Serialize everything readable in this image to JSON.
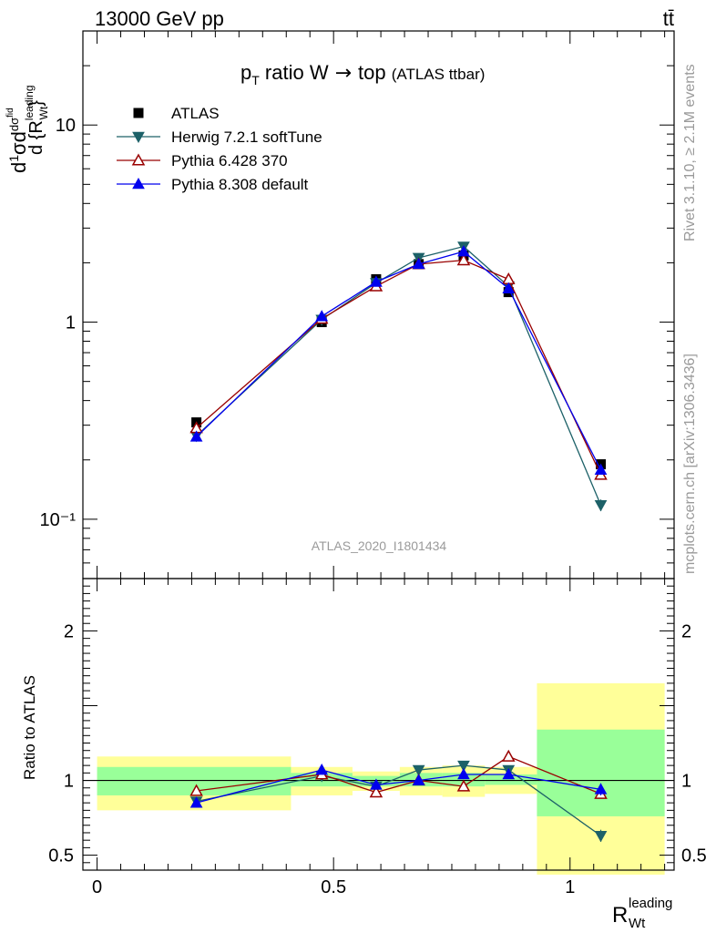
{
  "header": {
    "left": "13000 GeV pp",
    "right": "tt̄"
  },
  "side_labels": {
    "rivet": "Rivet 3.1.10, ≥ 2.1M events",
    "mcplots": "mcplots.cern.ch [arXiv:1306.3436]"
  },
  "analysis_label": "ATLAS_2020_I1801434",
  "chart_data": [
    {
      "type": "line",
      "panel": "main",
      "title": "p_T ratio W → top (ATLAS ttbar)",
      "ylabel": "d(1/σ)dσ^fid / d{R_Wt^leading}",
      "yscale": "log",
      "ylim": [
        0.05,
        30
      ],
      "xlim": [
        -0.03,
        1.22
      ],
      "yticks": [
        {
          "value": 0.1,
          "label": "10⁻¹"
        },
        {
          "value": 1,
          "label": "1"
        },
        {
          "value": 10,
          "label": "10"
        }
      ],
      "legend_position": "top-left",
      "x": [
        0.21,
        0.475,
        0.59,
        0.68,
        0.775,
        0.87,
        1.065
      ],
      "series": [
        {
          "name": "ATLAS",
          "color": "#000000",
          "marker": "square",
          "values": [
            0.31,
            1.0,
            1.65,
            1.97,
            2.18,
            1.42,
            0.19
          ]
        },
        {
          "name": "Herwig 7.2.1 softTune",
          "color": "#1d6168",
          "marker": "triangle-down",
          "values": [
            0.265,
            1.03,
            1.58,
            2.12,
            2.42,
            1.52,
            0.118
          ],
          "errors": [
            0.01,
            0.02,
            0.03,
            0.04,
            0.05,
            0.04,
            0.008
          ]
        },
        {
          "name": "Pythia 6.428 370",
          "color": "#990000",
          "marker": "triangle-up-open",
          "values": [
            0.29,
            1.04,
            1.52,
            1.97,
            2.06,
            1.65,
            0.168
          ],
          "errors": [
            0.01,
            0.02,
            0.03,
            0.04,
            0.04,
            0.04,
            0.008
          ]
        },
        {
          "name": "Pythia 8.308 default",
          "color": "#0000ee",
          "marker": "triangle-up",
          "values": [
            0.262,
            1.07,
            1.6,
            1.97,
            2.28,
            1.48,
            0.178
          ],
          "errors": [
            0.01,
            0.02,
            0.03,
            0.04,
            0.05,
            0.04,
            0.008
          ]
        }
      ]
    },
    {
      "type": "line",
      "panel": "ratio",
      "xlabel": "R_Wt^leading",
      "ylabel": "Ratio to ATLAS",
      "ylim": [
        0.4,
        2.35
      ],
      "xlim": [
        -0.03,
        1.22
      ],
      "xticks": [
        {
          "value": 0,
          "label": "0"
        },
        {
          "value": 0.5,
          "label": "0.5"
        },
        {
          "value": 1,
          "label": "1"
        }
      ],
      "yticks": [
        {
          "value": 0.5,
          "label": "0.5"
        },
        {
          "value": 1,
          "label": "1"
        },
        {
          "value": 2,
          "label": "2"
        }
      ],
      "uncertainty_bands": [
        {
          "x0": 0.0,
          "x1": 0.41,
          "stat_lo": 0.9,
          "stat_hi": 1.09,
          "tot_lo": 0.8,
          "tot_hi": 1.16
        },
        {
          "x0": 0.41,
          "x1": 0.54,
          "stat_lo": 0.96,
          "stat_hi": 1.05,
          "tot_lo": 0.9,
          "tot_hi": 1.09
        },
        {
          "x0": 0.54,
          "x1": 0.64,
          "stat_lo": 0.96,
          "stat_hi": 1.03,
          "tot_lo": 0.93,
          "tot_hi": 1.06
        },
        {
          "x0": 0.64,
          "x1": 0.73,
          "stat_lo": 0.96,
          "stat_hi": 1.05,
          "tot_lo": 0.9,
          "tot_hi": 1.09
        },
        {
          "x0": 0.73,
          "x1": 0.82,
          "stat_lo": 0.96,
          "stat_hi": 1.05,
          "tot_lo": 0.89,
          "tot_hi": 1.1
        },
        {
          "x0": 0.82,
          "x1": 0.93,
          "stat_lo": 0.97,
          "stat_hi": 1.04,
          "tot_lo": 0.91,
          "tot_hi": 1.09
        },
        {
          "x0": 0.93,
          "x1": 1.2,
          "stat_lo": 0.76,
          "stat_hi": 1.34,
          "tot_lo": 0.37,
          "tot_hi": 1.65
        }
      ],
      "band_colors": {
        "stat": "#99ff99",
        "total": "#ffff99"
      },
      "x": [
        0.21,
        0.475,
        0.59,
        0.68,
        0.775,
        0.87,
        1.065
      ],
      "series": [
        {
          "name": "Herwig 7.2.1 softTune",
          "color": "#1d6168",
          "marker": "triangle-down",
          "values": [
            0.86,
            1.03,
            0.96,
            1.07,
            1.1,
            1.07,
            0.63
          ],
          "errors": [
            0.03,
            0.03,
            0.02,
            0.02,
            0.02,
            0.02,
            0.04
          ]
        },
        {
          "name": "Pythia 6.428 370",
          "color": "#990000",
          "marker": "triangle-up-open",
          "values": [
            0.93,
            1.04,
            0.92,
            1.0,
            0.96,
            1.16,
            0.91
          ],
          "errors": [
            0.02,
            0.02,
            0.02,
            0.02,
            0.02,
            0.02,
            0.03
          ]
        },
        {
          "name": "Pythia 8.308 default",
          "color": "#0000ee",
          "marker": "triangle-up",
          "values": [
            0.85,
            1.07,
            0.97,
            1.0,
            1.04,
            1.04,
            0.94
          ],
          "errors": [
            0.03,
            0.02,
            0.02,
            0.02,
            0.02,
            0.02,
            0.04
          ]
        }
      ]
    }
  ]
}
